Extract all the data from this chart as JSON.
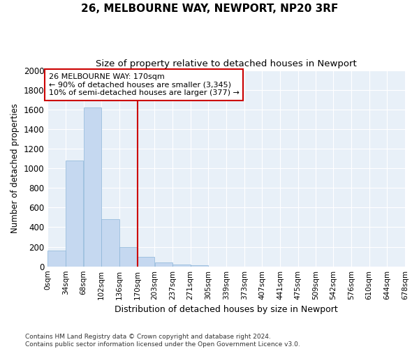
{
  "title": "26, MELBOURNE WAY, NEWPORT, NP20 3RF",
  "subtitle": "Size of property relative to detached houses in Newport",
  "xlabel": "Distribution of detached houses by size in Newport",
  "ylabel": "Number of detached properties",
  "bar_color": "#c5d8f0",
  "bar_edge_color": "#8ab4d8",
  "background_color": "#e8f0f8",
  "grid_color": "#ffffff",
  "vline_x": 170,
  "vline_color": "#cc0000",
  "annotation_text": "26 MELBOURNE WAY: 170sqm\n← 90% of detached houses are smaller (3,345)\n10% of semi-detached houses are larger (377) →",
  "annotation_box_color": "#cc0000",
  "ylim": [
    0,
    2000
  ],
  "yticks": [
    0,
    200,
    400,
    600,
    800,
    1000,
    1200,
    1400,
    1600,
    1800,
    2000
  ],
  "bin_edges": [
    0,
    34,
    68,
    102,
    136,
    170,
    203,
    237,
    271,
    305,
    339,
    373,
    407,
    441,
    475,
    509,
    542,
    576,
    610,
    644,
    678
  ],
  "bin_labels": [
    "0sqm",
    "34sqm",
    "68sqm",
    "102sqm",
    "136sqm",
    "170sqm",
    "203sqm",
    "237sqm",
    "271sqm",
    "305sqm",
    "339sqm",
    "373sqm",
    "407sqm",
    "441sqm",
    "475sqm",
    "509sqm",
    "542sqm",
    "576sqm",
    "610sqm",
    "644sqm",
    "678sqm"
  ],
  "bar_heights": [
    160,
    1080,
    1620,
    480,
    200,
    100,
    40,
    20,
    10,
    0,
    0,
    0,
    0,
    0,
    0,
    0,
    0,
    0,
    0,
    0
  ],
  "footer_text": "Contains HM Land Registry data © Crown copyright and database right 2024.\nContains public sector information licensed under the Open Government Licence v3.0.",
  "figsize": [
    6.0,
    5.0
  ],
  "dpi": 100
}
